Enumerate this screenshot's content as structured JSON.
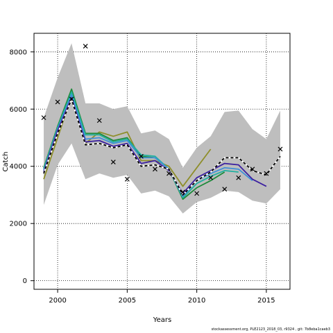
{
  "chart_data": {
    "type": "line",
    "xlabel": "Years",
    "ylabel": "Catch",
    "xlim": [
      1998.3,
      2016.7
    ],
    "ylim": [
      -300,
      8650
    ],
    "xticks": [
      2000,
      2005,
      2010,
      2015
    ],
    "yticks": [
      0,
      2000,
      4000,
      6000,
      8000
    ],
    "grid": "dotted, at ticks",
    "band": {
      "color": "#bebebe",
      "x": [
        1999,
        2000,
        2001,
        2002,
        2003,
        2004,
        2005,
        2006,
        2007,
        2008,
        2009,
        2010,
        2011,
        2012,
        2013,
        2014,
        2015,
        2016
      ],
      "upper": [
        5700,
        7100,
        8300,
        6200,
        6200,
        6000,
        6100,
        5150,
        5250,
        4950,
        3950,
        4650,
        5050,
        5900,
        5950,
        5300,
        4950,
        5950
      ],
      "lower": [
        2650,
        4050,
        4800,
        3550,
        3750,
        3600,
        3700,
        3050,
        3150,
        2950,
        2350,
        2750,
        2900,
        3150,
        3100,
        2800,
        2700,
        3200
      ]
    },
    "series": [
      {
        "color": "#000000",
        "dashed": true,
        "x": [
          1999,
          2000,
          2001,
          2002,
          2003,
          2004,
          2005,
          2006,
          2007,
          2008,
          2009,
          2010,
          2011,
          2012,
          2013,
          2014,
          2015,
          2016
        ],
        "values": [
          3750,
          5150,
          6350,
          4750,
          4800,
          4650,
          4750,
          4000,
          4050,
          3900,
          3000,
          3500,
          3800,
          4300,
          4300,
          3850,
          3700,
          4350
        ]
      },
      {
        "color": "#3b1fa0",
        "dashed": false,
        "x": [
          1999,
          2000,
          2001,
          2002,
          2003,
          2004,
          2005,
          2006,
          2007,
          2008,
          2009,
          2010,
          2011,
          2012,
          2013,
          2014,
          2015
        ],
        "values": [
          3800,
          5250,
          6400,
          4850,
          4900,
          4700,
          4800,
          4100,
          4200,
          3850,
          3050,
          3600,
          3850,
          4100,
          4050,
          3550,
          3300
        ]
      },
      {
        "color": "#3f90d8",
        "dashed": false,
        "x": [
          1999,
          2000,
          2001,
          2002,
          2003,
          2004,
          2005,
          2006,
          2007,
          2008,
          2009,
          2010,
          2011,
          2012,
          2013,
          2014
        ],
        "values": [
          3850,
          5300,
          6500,
          4950,
          5000,
          4800,
          4900,
          4300,
          4300,
          3900,
          2950,
          3500,
          3750,
          3950,
          3900,
          3500
        ]
      },
      {
        "color": "#20b0a0",
        "dashed": false,
        "x": [
          1999,
          2000,
          2001,
          2002,
          2003,
          2004,
          2005,
          2006,
          2007,
          2008,
          2009,
          2010,
          2011,
          2012,
          2013
        ],
        "values": [
          3900,
          5350,
          6600,
          5100,
          5100,
          4850,
          4950,
          4400,
          4350,
          3900,
          2900,
          3400,
          3650,
          3850,
          3800
        ]
      },
      {
        "color": "#1e8a3a",
        "dashed": false,
        "x": [
          1999,
          2000,
          2001,
          2002,
          2003,
          2004,
          2005,
          2006,
          2007,
          2008,
          2009,
          2010,
          2011,
          2012
        ],
        "values": [
          3950,
          5400,
          6700,
          5150,
          5150,
          4900,
          5000,
          4350,
          4300,
          3900,
          2850,
          3250,
          3500,
          3800
        ]
      },
      {
        "color": "#8e8e2a",
        "dashed": false,
        "x": [
          1999,
          2000,
          2001,
          2002,
          2003,
          2004,
          2005,
          2006,
          2007,
          2008,
          2009,
          2010,
          2011
        ],
        "values": [
          3550,
          5000,
          6450,
          4800,
          5200,
          5050,
          5200,
          4200,
          4200,
          4000,
          3300,
          3950,
          4600
        ]
      }
    ],
    "observed": {
      "marker": "x",
      "x": [
        1999,
        2000,
        2001,
        2002,
        2003,
        2004,
        2005,
        2006,
        2007,
        2008,
        2009,
        2010,
        2011,
        2012,
        2013,
        2014,
        2015,
        2016
      ],
      "values": [
        5700,
        6250,
        6350,
        8200,
        5600,
        4150,
        3550,
        4350,
        3900,
        3750,
        3100,
        3050,
        3600,
        3200,
        3600,
        3900,
        3750,
        4600
      ]
    }
  },
  "footer": "stockassessment.org, PLE2123_2018_03, r9324 , git: 7b8eba1caeb3"
}
